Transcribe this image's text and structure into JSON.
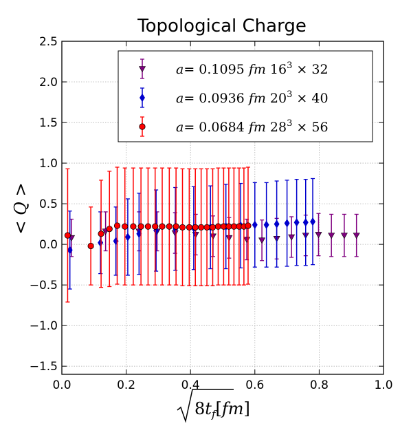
{
  "chart_data": {
    "type": "scatter",
    "title": "Topological Charge",
    "xlabel": "√8t_f [fm]",
    "ylabel": "< Q >",
    "xlim": [
      0.0,
      1.0
    ],
    "ylim": [
      -1.6,
      2.5
    ],
    "xticks": [
      "0.0",
      "0.2",
      "0.4",
      "0.6",
      "0.8",
      "1.0"
    ],
    "xtick_values": [
      0.0,
      0.2,
      0.4,
      0.6,
      0.8,
      1.0
    ],
    "yticks": [
      "−1.5",
      "−1.0",
      "−0.5",
      "0.0",
      "0.5",
      "1.0",
      "1.5",
      "2.0",
      "2.5"
    ],
    "ytick_values": [
      -1.5,
      -1.0,
      -0.5,
      0.0,
      0.5,
      1.0,
      1.5,
      2.0,
      2.5
    ],
    "grid": true,
    "legend_position": "top-right",
    "series": [
      {
        "name": "a = 0.1095 fm 16³ × 32",
        "legend_parts": {
          "a": "a",
          "eq": "= 0.1095",
          "fm": "fm",
          "L": "16",
          "exp": "3",
          "times": "×",
          "T": "32"
        },
        "color": "#800080",
        "marker": "triangle-down",
        "x": [
          0.03,
          0.136,
          0.24,
          0.296,
          0.352,
          0.416,
          0.47,
          0.52,
          0.575,
          0.622,
          0.668,
          0.714,
          0.758,
          0.798,
          0.838,
          0.878,
          0.916
        ],
        "y": [
          0.08,
          0.16,
          0.16,
          0.16,
          0.14,
          0.12,
          0.1,
          0.08,
          0.06,
          0.05,
          0.07,
          0.09,
          0.11,
          0.12,
          0.11,
          0.11,
          0.11
        ],
        "err": [
          0.23,
          0.24,
          0.24,
          0.24,
          0.25,
          0.25,
          0.25,
          0.25,
          0.25,
          0.25,
          0.25,
          0.25,
          0.25,
          0.26,
          0.26,
          0.26,
          0.26
        ]
      },
      {
        "name": "a = 0.0936 fm 20³ × 40",
        "legend_parts": {
          "a": "a",
          "eq": "= 0.0936",
          "fm": "fm",
          "L": "20",
          "exp": "3",
          "times": "×",
          "T": "40"
        },
        "color": "#0000cd",
        "marker": "diamond",
        "x": [
          0.025,
          0.12,
          0.168,
          0.205,
          0.24,
          0.293,
          0.353,
          0.41,
          0.462,
          0.51,
          0.556,
          0.6,
          0.636,
          0.668,
          0.7,
          0.73,
          0.758,
          0.78
        ],
        "y": [
          -0.07,
          0.02,
          0.04,
          0.09,
          0.13,
          0.17,
          0.19,
          0.2,
          0.21,
          0.22,
          0.23,
          0.24,
          0.24,
          0.25,
          0.26,
          0.27,
          0.27,
          0.28
        ],
        "err": [
          0.48,
          0.38,
          0.42,
          0.47,
          0.5,
          0.5,
          0.51,
          0.51,
          0.51,
          0.52,
          0.52,
          0.52,
          0.52,
          0.53,
          0.53,
          0.53,
          0.53,
          0.53
        ]
      },
      {
        "name": "a = 0.0684 fm 28³ × 56",
        "legend_parts": {
          "a": "a",
          "eq": "= 0.0684",
          "fm": "fm",
          "L": "28",
          "exp": "3",
          "times": "×",
          "T": "56"
        },
        "color": "#ff0000",
        "marker": "circle",
        "x": [
          0.018,
          0.09,
          0.122,
          0.148,
          0.172,
          0.196,
          0.222,
          0.246,
          0.268,
          0.29,
          0.312,
          0.334,
          0.355,
          0.375,
          0.396,
          0.415,
          0.433,
          0.451,
          0.469,
          0.486,
          0.503,
          0.519,
          0.535,
          0.551,
          0.566,
          0.579
        ],
        "y": [
          0.11,
          -0.02,
          0.13,
          0.19,
          0.23,
          0.22,
          0.22,
          0.22,
          0.22,
          0.22,
          0.22,
          0.22,
          0.22,
          0.21,
          0.21,
          0.21,
          0.21,
          0.21,
          0.21,
          0.22,
          0.22,
          0.22,
          0.22,
          0.22,
          0.22,
          0.23
        ],
        "err": [
          0.82,
          0.48,
          0.66,
          0.71,
          0.72,
          0.72,
          0.72,
          0.72,
          0.72,
          0.72,
          0.72,
          0.72,
          0.72,
          0.72,
          0.72,
          0.72,
          0.72,
          0.72,
          0.72,
          0.72,
          0.72,
          0.72,
          0.72,
          0.72,
          0.72,
          0.72
        ]
      }
    ]
  }
}
